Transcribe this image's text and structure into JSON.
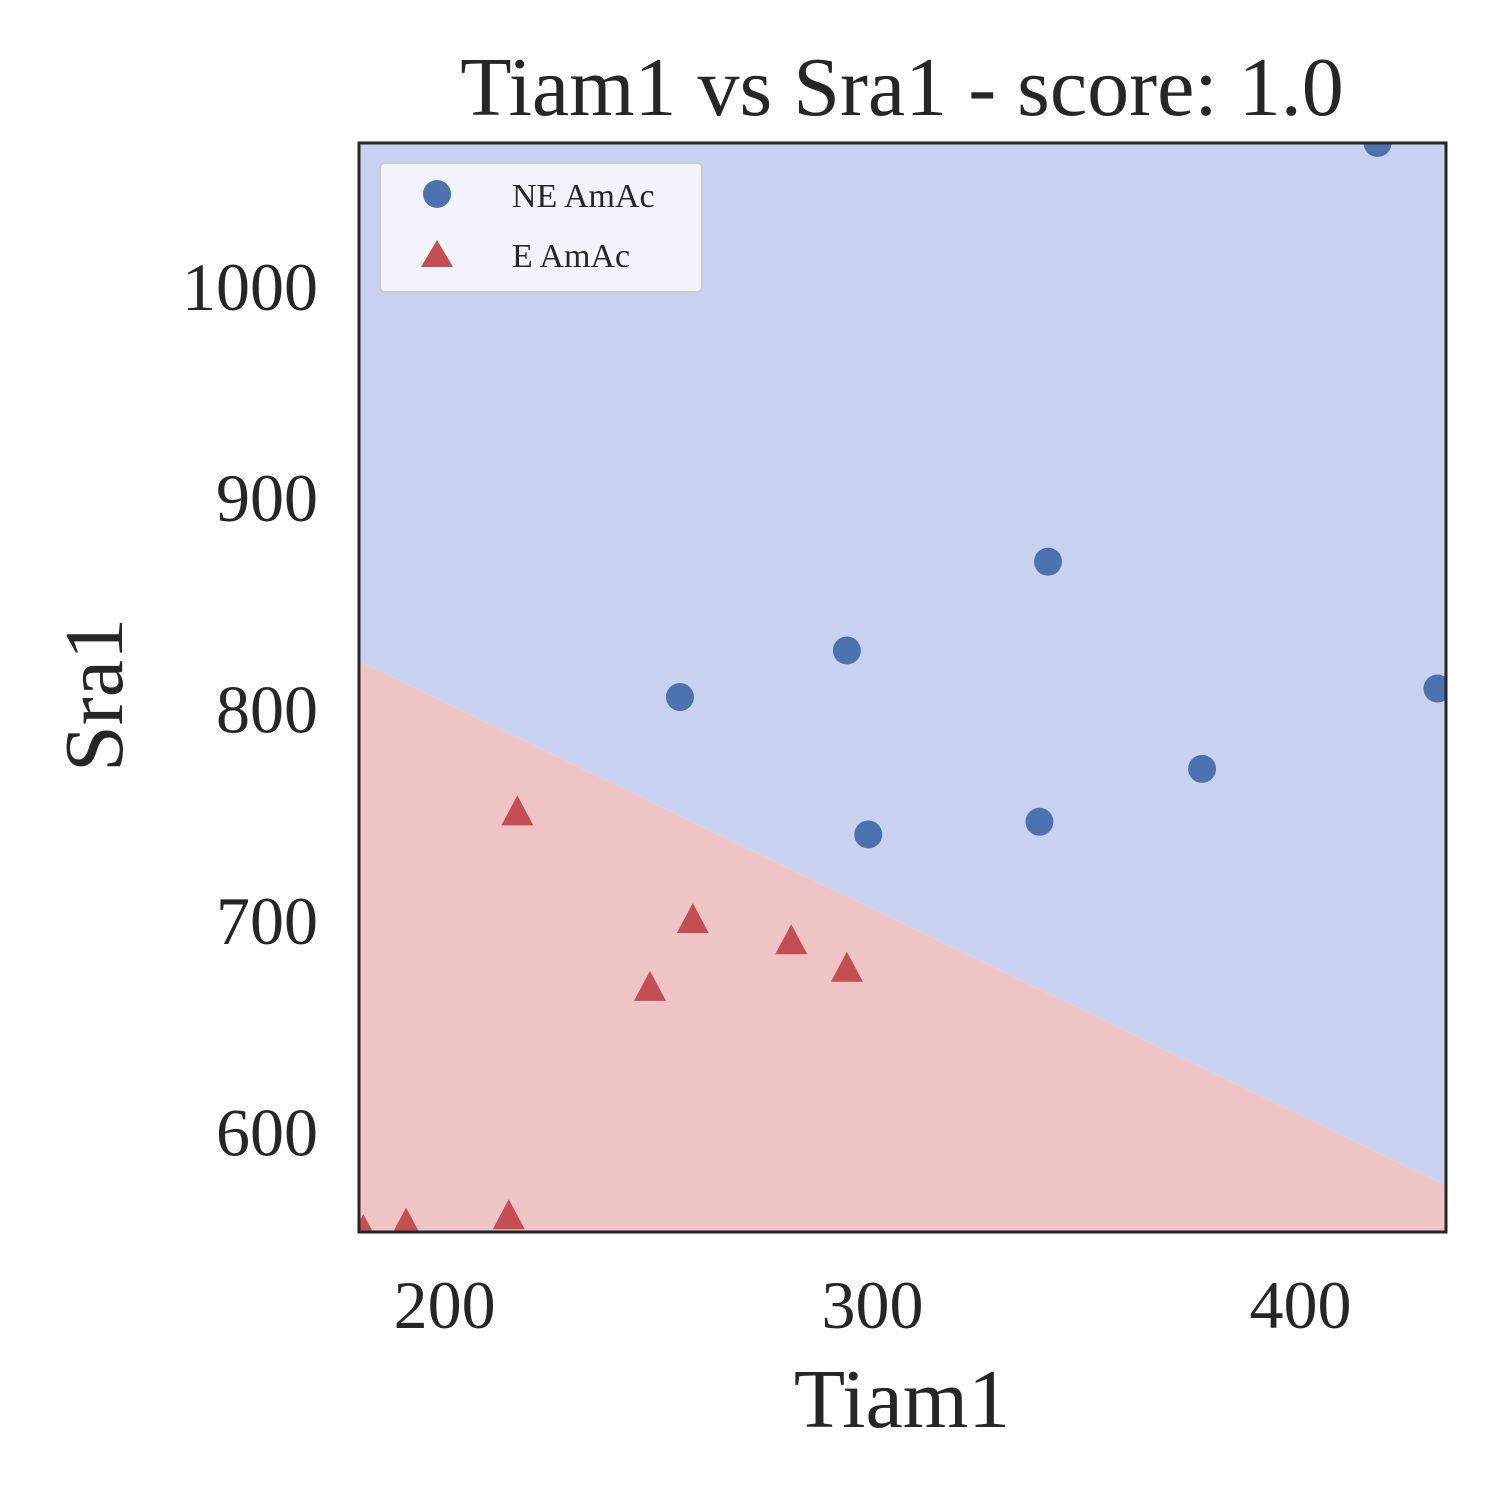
{
  "chart_data": {
    "type": "scatter",
    "title": "Tiam1 vs Sra1 - score: 1.0",
    "xlabel": "Tiam1",
    "ylabel": "Sra1",
    "xlim": [
      180,
      434
    ],
    "ylim": [
      553,
      1068
    ],
    "xticks": [
      200,
      300,
      400
    ],
    "yticks": [
      600,
      700,
      800,
      900,
      1000
    ],
    "grid": false,
    "legend_position": "top-left",
    "decision_regions": {
      "boundary_line": [
        [
          180,
          823
        ],
        [
          434,
          575
        ]
      ],
      "above_class": "NE AmAc",
      "below_class": "E AmAc",
      "above_color": "#c9d1f1",
      "below_color": "#efc4c4"
    },
    "series": [
      {
        "name": "NE AmAc",
        "marker": "circle",
        "color": "#4c72b0",
        "points": [
          {
            "x": 255,
            "y": 806
          },
          {
            "x": 294,
            "y": 828
          },
          {
            "x": 299,
            "y": 741
          },
          {
            "x": 341,
            "y": 870
          },
          {
            "x": 339,
            "y": 747
          },
          {
            "x": 377,
            "y": 772
          },
          {
            "x": 418,
            "y": 1068
          },
          {
            "x": 432,
            "y": 810
          }
        ]
      },
      {
        "name": "E AmAc",
        "marker": "triangle",
        "color": "#c44e52",
        "points": [
          {
            "x": 217,
            "y": 751
          },
          {
            "x": 258,
            "y": 700
          },
          {
            "x": 248,
            "y": 668
          },
          {
            "x": 281,
            "y": 690
          },
          {
            "x": 294,
            "y": 677
          },
          {
            "x": 215,
            "y": 560
          },
          {
            "x": 191,
            "y": 556
          },
          {
            "x": 181,
            "y": 553
          }
        ]
      }
    ]
  }
}
